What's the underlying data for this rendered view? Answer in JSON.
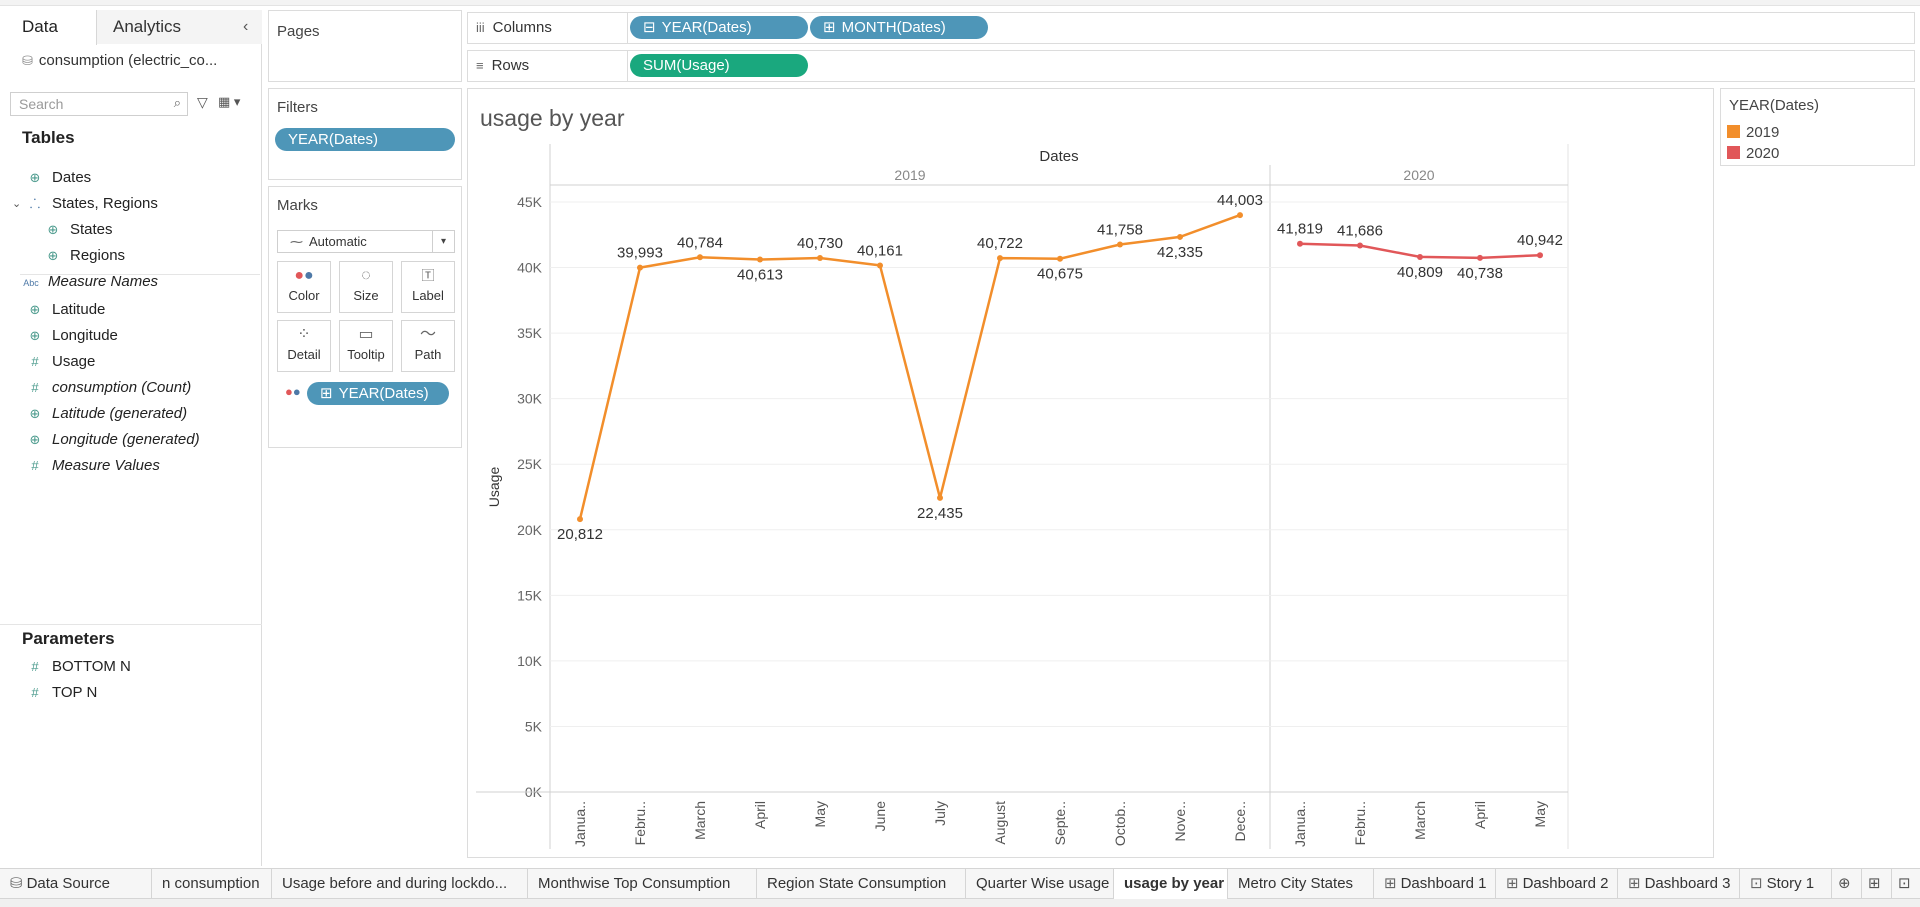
{
  "data_pane": {
    "tab_data": "Data",
    "tab_analytics": "Analytics",
    "datasource": "consumption (electric_co...",
    "search_placeholder": "Search",
    "tables_title": "Tables",
    "fields": [
      {
        "label": "Dates",
        "icon": "globe-icon",
        "italic": false
      },
      {
        "label": "States, Regions",
        "icon": "hierarchy-icon",
        "italic": false
      },
      {
        "label": "States",
        "icon": "globe-icon",
        "italic": false
      },
      {
        "label": "Regions",
        "icon": "globe-icon",
        "italic": false
      },
      {
        "label": "Measure Names",
        "icon": "abc-icon",
        "italic": true
      },
      {
        "label": "Latitude",
        "icon": "globe-icon",
        "italic": false
      },
      {
        "label": "Longitude",
        "icon": "globe-icon",
        "italic": false
      },
      {
        "label": "Usage",
        "icon": "measure-icon",
        "italic": false
      },
      {
        "label": "consumption (Count)",
        "icon": "measure-icon",
        "italic": true
      },
      {
        "label": "Latitude (generated)",
        "icon": "globe-icon",
        "italic": true
      },
      {
        "label": "Longitude (generated)",
        "icon": "globe-icon",
        "italic": true
      },
      {
        "label": "Measure Values",
        "icon": "measure-icon",
        "italic": true
      }
    ],
    "parameters_title": "Parameters",
    "parameters": [
      "BOTTOM N",
      "TOP N"
    ]
  },
  "cards": {
    "pages": "Pages",
    "filters": "Filters",
    "filter_pill": "YEAR(Dates)",
    "marks": "Marks",
    "mark_type": "Automatic",
    "mark_buttons": [
      "Color",
      "Size",
      "Label",
      "Detail",
      "Tooltip",
      "Path"
    ],
    "color_pill": "YEAR(Dates)"
  },
  "shelves": {
    "columns_label": "Columns",
    "rows_label": "Rows",
    "columns_pills": [
      "YEAR(Dates)",
      "MONTH(Dates)"
    ],
    "rows_pill": "SUM(Usage)"
  },
  "viz": {
    "title": "usage by year"
  },
  "legend": {
    "title": "YEAR(Dates)",
    "items": [
      {
        "label": "2019",
        "color": "#f28e2b"
      },
      {
        "label": "2020",
        "color": "#e15759"
      }
    ]
  },
  "chart_data": {
    "type": "line",
    "header": "Dates",
    "ylabel": "Usage",
    "ylim": [
      0,
      45000
    ],
    "y_ticks": [
      "0K",
      "5K",
      "10K",
      "15K",
      "20K",
      "25K",
      "30K",
      "35K",
      "40K",
      "45K"
    ],
    "grid": true,
    "panes": [
      {
        "year": "2019",
        "color": "#f28e2b",
        "categories": [
          "Janua..",
          "Febru..",
          "March",
          "April",
          "May",
          "June",
          "July",
          "August",
          "Septe..",
          "Octob..",
          "Nove..",
          "Dece.."
        ],
        "values": [
          20812,
          39993,
          40784,
          40613,
          40730,
          40161,
          22435,
          40722,
          40675,
          41758,
          42335,
          44003
        ],
        "labels": [
          "20,812",
          "39,993",
          "40,784",
          "40,613",
          "40,730",
          "40,161",
          "22,435",
          "40,722",
          "40,675",
          "41,758",
          "42,335",
          "44,003"
        ]
      },
      {
        "year": "2020",
        "color": "#e15759",
        "categories": [
          "Janua..",
          "Febru..",
          "March",
          "April",
          "May"
        ],
        "values": [
          41819,
          41686,
          40809,
          40738,
          40942
        ],
        "labels": [
          "41,819",
          "41,686",
          "40,809",
          "40,738",
          "40,942"
        ]
      }
    ]
  },
  "bottom_tabs": [
    {
      "label": "Data Source",
      "icon": "datasource-icon",
      "active": false
    },
    {
      "label": "n consumption",
      "icon": "",
      "active": false
    },
    {
      "label": "Usage before and during lockdo...",
      "icon": "",
      "active": false
    },
    {
      "label": "Monthwise Top Consumption",
      "icon": "",
      "active": false
    },
    {
      "label": "Region State Consumption",
      "icon": "",
      "active": false
    },
    {
      "label": "Quarter Wise usage",
      "icon": "",
      "active": false
    },
    {
      "label": "usage by year",
      "icon": "",
      "active": true
    },
    {
      "label": "Metro City States",
      "icon": "",
      "active": false
    },
    {
      "label": "Dashboard 1",
      "icon": "dashboard-icon",
      "active": false
    },
    {
      "label": "Dashboard 2",
      "icon": "dashboard-icon",
      "active": false
    },
    {
      "label": "Dashboard 3",
      "icon": "dashboard-icon",
      "active": false
    },
    {
      "label": "Story 1",
      "icon": "story-icon",
      "active": false
    }
  ]
}
